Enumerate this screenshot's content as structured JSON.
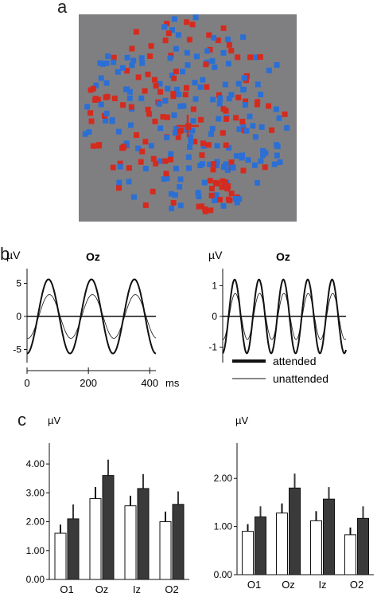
{
  "panels": {
    "a": "a",
    "b": "b",
    "c": "c"
  },
  "colors": {
    "red": "#d52b1e",
    "blue": "#2c6fd4",
    "background": "#7f7f82",
    "fixation": "#d52b1e",
    "bar_open": "#ffffff",
    "bar_filled": "#3a3a3a"
  },
  "stimulus": {
    "description_elements": [
      "red-squares",
      "blue-squares",
      "fixation-cross"
    ]
  },
  "legend": {
    "attended": "attended",
    "unattended": "unattended"
  },
  "time_axis": {
    "ticks": [
      "0",
      "200",
      "400"
    ],
    "unit": "ms"
  },
  "chart_data": [
    {
      "type": "line",
      "title": "Oz",
      "ylabel": "µV",
      "yticks": [
        "5",
        "0",
        "-5"
      ],
      "ylim": [
        -6.5,
        6.5
      ],
      "xlim": [
        0,
        420
      ],
      "series": [
        {
          "name": "attended",
          "amplitude": 5.6,
          "period_ms": 140,
          "phase_ms": 35
        },
        {
          "name": "unattended",
          "amplitude": 3.3,
          "period_ms": 140,
          "phase_ms": 38
        }
      ]
    },
    {
      "type": "line",
      "title": "Oz",
      "ylabel": "µV",
      "yticks": [
        "1",
        "0",
        "-1"
      ],
      "ylim": [
        -1.4,
        1.4
      ],
      "xlim": [
        0,
        420
      ],
      "series": [
        {
          "name": "attended",
          "amplitude": 1.2,
          "period_ms": 83,
          "phase_ms": 20
        },
        {
          "name": "unattended",
          "amplitude": 0.75,
          "period_ms": 83,
          "phase_ms": 22
        }
      ]
    },
    {
      "type": "bar",
      "ylabel": "µV",
      "categories": [
        "O1",
        "Oz",
        "Iz",
        "O2"
      ],
      "yticks": [
        "0.00",
        "1.00",
        "2.00",
        "3.00",
        "4.00"
      ],
      "ylim": [
        0,
        4.5
      ],
      "series": [
        {
          "name": "unattended",
          "values": [
            1.6,
            2.8,
            2.55,
            2.0
          ],
          "errors": [
            0.3,
            0.4,
            0.35,
            0.35
          ]
        },
        {
          "name": "attended",
          "values": [
            2.1,
            3.6,
            3.15,
            2.6
          ],
          "errors": [
            0.5,
            0.55,
            0.5,
            0.45
          ]
        }
      ]
    },
    {
      "type": "bar",
      "ylabel": "µV",
      "categories": [
        "O1",
        "Oz",
        "Iz",
        "O2"
      ],
      "yticks": [
        "0.00",
        "1.00",
        "2.00"
      ],
      "ylim": [
        0,
        2.6
      ],
      "series": [
        {
          "name": "unattended",
          "values": [
            0.9,
            1.28,
            1.12,
            0.83
          ],
          "errors": [
            0.15,
            0.2,
            0.2,
            0.15
          ]
        },
        {
          "name": "attended",
          "values": [
            1.2,
            1.8,
            1.57,
            1.17
          ],
          "errors": [
            0.22,
            0.3,
            0.25,
            0.25
          ]
        }
      ]
    }
  ]
}
